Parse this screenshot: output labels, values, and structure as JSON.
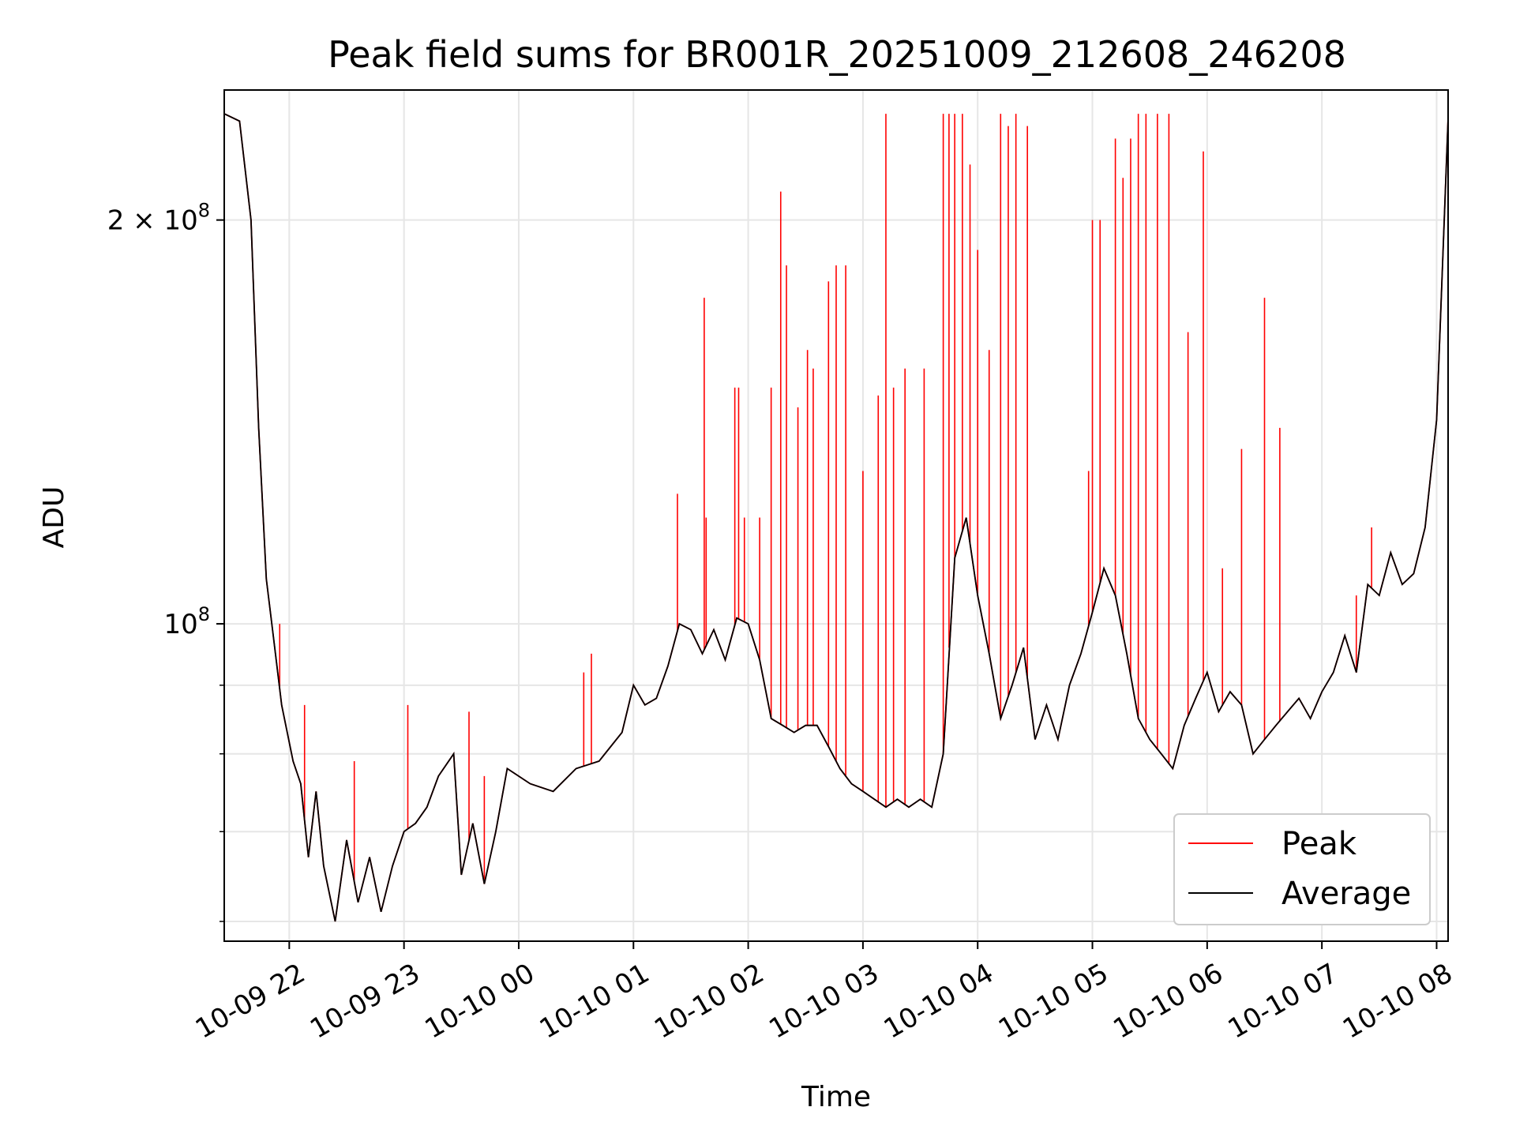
{
  "chart_data": {
    "type": "line",
    "title": "Peak field sums for BR001R_20251009_212608_246208",
    "xlabel": "Time",
    "ylabel": "ADU",
    "y_scale": "log",
    "ylim": [
      58000000,
      250000000
    ],
    "xlim": [
      "2025-10-09 21:26",
      "2025-10-10 08:06"
    ],
    "grid": true,
    "legend_position": "lower-right",
    "x_ticks": [
      "10-09 22",
      "10-09 23",
      "10-10 00",
      "10-10 01",
      "10-10 02",
      "10-10 03",
      "10-10 04",
      "10-10 05",
      "10-10 06",
      "10-10 07",
      "10-10 08"
    ],
    "y_tick_labels": [
      {
        "value": 100000000,
        "mantissa": "",
        "exponent": "8"
      },
      {
        "value": 200000000,
        "mantissa": "2 × ",
        "exponent": "8"
      }
    ],
    "y_minor_ticks": [
      60000000,
      70000000,
      80000000,
      90000000
    ],
    "colors": {
      "peak": "#ff0000",
      "average": "#000000"
    },
    "series": [
      {
        "name": "Average",
        "x": [
          "2025-10-09 21:26",
          "2025-10-09 21:34",
          "2025-10-09 21:40",
          "2025-10-09 21:44",
          "2025-10-09 21:48",
          "2025-10-09 21:52",
          "2025-10-09 21:56",
          "2025-10-09 22:02",
          "2025-10-09 22:06",
          "2025-10-09 22:10",
          "2025-10-09 22:14",
          "2025-10-09 22:18",
          "2025-10-09 22:24",
          "2025-10-09 22:30",
          "2025-10-09 22:36",
          "2025-10-09 22:42",
          "2025-10-09 22:48",
          "2025-10-09 22:54",
          "2025-10-09 23:00",
          "2025-10-09 23:06",
          "2025-10-09 23:12",
          "2025-10-09 23:18",
          "2025-10-09 23:26",
          "2025-10-09 23:30",
          "2025-10-09 23:36",
          "2025-10-09 23:42",
          "2025-10-09 23:48",
          "2025-10-09 23:54",
          "2025-10-10 00:06",
          "2025-10-10 00:18",
          "2025-10-10 00:30",
          "2025-10-10 00:42",
          "2025-10-10 00:54",
          "2025-10-10 01:00",
          "2025-10-10 01:06",
          "2025-10-10 01:12",
          "2025-10-10 01:18",
          "2025-10-10 01:24",
          "2025-10-10 01:30",
          "2025-10-10 01:36",
          "2025-10-10 01:42",
          "2025-10-10 01:48",
          "2025-10-10 01:54",
          "2025-10-10 02:00",
          "2025-10-10 02:06",
          "2025-10-10 02:12",
          "2025-10-10 02:18",
          "2025-10-10 02:24",
          "2025-10-10 02:30",
          "2025-10-10 02:36",
          "2025-10-10 02:42",
          "2025-10-10 02:48",
          "2025-10-10 02:54",
          "2025-10-10 03:00",
          "2025-10-10 03:06",
          "2025-10-10 03:12",
          "2025-10-10 03:18",
          "2025-10-10 03:24",
          "2025-10-10 03:30",
          "2025-10-10 03:36",
          "2025-10-10 03:42",
          "2025-10-10 03:48",
          "2025-10-10 03:54",
          "2025-10-10 04:00",
          "2025-10-10 04:06",
          "2025-10-10 04:12",
          "2025-10-10 04:18",
          "2025-10-10 04:24",
          "2025-10-10 04:30",
          "2025-10-10 04:36",
          "2025-10-10 04:42",
          "2025-10-10 04:48",
          "2025-10-10 04:54",
          "2025-10-10 05:00",
          "2025-10-10 05:06",
          "2025-10-10 05:12",
          "2025-10-10 05:18",
          "2025-10-10 05:24",
          "2025-10-10 05:30",
          "2025-10-10 05:36",
          "2025-10-10 05:42",
          "2025-10-10 05:48",
          "2025-10-10 05:54",
          "2025-10-10 06:00",
          "2025-10-10 06:06",
          "2025-10-10 06:12",
          "2025-10-10 06:18",
          "2025-10-10 06:24",
          "2025-10-10 06:30",
          "2025-10-10 06:36",
          "2025-10-10 06:42",
          "2025-10-10 06:48",
          "2025-10-10 06:54",
          "2025-10-10 07:00",
          "2025-10-10 07:06",
          "2025-10-10 07:12",
          "2025-10-10 07:18",
          "2025-10-10 07:24",
          "2025-10-10 07:30",
          "2025-10-10 07:36",
          "2025-10-10 07:42",
          "2025-10-10 07:48",
          "2025-10-10 07:54",
          "2025-10-10 08:00",
          "2025-10-10 08:06"
        ],
        "y": [
          240000000,
          237000000,
          200000000,
          140000000,
          108000000,
          97000000,
          87000000,
          79000000,
          76000000,
          67000000,
          75000000,
          66000000,
          60000000,
          69000000,
          62000000,
          67000000,
          61000000,
          66000000,
          70000000,
          71000000,
          73000000,
          77000000,
          80000000,
          65000000,
          71000000,
          64000000,
          70000000,
          78000000,
          76000000,
          75000000,
          78000000,
          79000000,
          83000000,
          90000000,
          87000000,
          88000000,
          93000000,
          100000000,
          99000000,
          95000000,
          99000000,
          94000000,
          101000000,
          100000000,
          94000000,
          85000000,
          84000000,
          83000000,
          84000000,
          84000000,
          81000000,
          78000000,
          76000000,
          75000000,
          74000000,
          73000000,
          74000000,
          73000000,
          74000000,
          73000000,
          80000000,
          112000000,
          120000000,
          105000000,
          95000000,
          85000000,
          90000000,
          96000000,
          82000000,
          87000000,
          82000000,
          90000000,
          95000000,
          102000000,
          110000000,
          105000000,
          95000000,
          85000000,
          82000000,
          80000000,
          78000000,
          84000000,
          88000000,
          92000000,
          86000000,
          89000000,
          87000000,
          80000000,
          82000000,
          84000000,
          86000000,
          88000000,
          85000000,
          89000000,
          92000000,
          98000000,
          92000000,
          107000000,
          105000000,
          113000000,
          107000000,
          109000000,
          118000000,
          142000000,
          238000000
        ],
        "y_note": ""
      },
      {
        "name": "Peak",
        "x": [
          "2025-10-09 21:26",
          "2025-10-09 21:34",
          "2025-10-09 21:40",
          "2025-10-09 21:44",
          "2025-10-09 21:48",
          "2025-10-09 21:52",
          "2025-10-09 21:56",
          "2025-10-09 22:02",
          "2025-10-09 22:06",
          "2025-10-09 22:10",
          "2025-10-09 22:14",
          "2025-10-09 22:18",
          "2025-10-09 22:24",
          "2025-10-09 22:30",
          "2025-10-09 22:36",
          "2025-10-09 22:42",
          "2025-10-09 22:48",
          "2025-10-09 22:54",
          "2025-10-09 23:00",
          "2025-10-09 23:06",
          "2025-10-09 23:12",
          "2025-10-09 23:18",
          "2025-10-09 23:26",
          "2025-10-09 23:30",
          "2025-10-09 23:36",
          "2025-10-09 23:42",
          "2025-10-09 23:48",
          "2025-10-09 23:54",
          "2025-10-10 00:06",
          "2025-10-10 00:18",
          "2025-10-10 00:30",
          "2025-10-10 00:42",
          "2025-10-10 00:54",
          "2025-10-10 01:00",
          "2025-10-10 01:06",
          "2025-10-10 01:12",
          "2025-10-10 01:18",
          "2025-10-10 01:24",
          "2025-10-10 01:30",
          "2025-10-10 01:36",
          "2025-10-10 01:42",
          "2025-10-10 01:48",
          "2025-10-10 01:54",
          "2025-10-10 02:00",
          "2025-10-10 02:06",
          "2025-10-10 02:12",
          "2025-10-10 02:18",
          "2025-10-10 02:24",
          "2025-10-10 02:30",
          "2025-10-10 02:36",
          "2025-10-10 02:42",
          "2025-10-10 02:48",
          "2025-10-10 02:54",
          "2025-10-10 03:00",
          "2025-10-10 03:06",
          "2025-10-10 03:12",
          "2025-10-10 03:18",
          "2025-10-10 03:24",
          "2025-10-10 03:30",
          "2025-10-10 03:36",
          "2025-10-10 03:42",
          "2025-10-10 03:48",
          "2025-10-10 03:54",
          "2025-10-10 04:00",
          "2025-10-10 04:06",
          "2025-10-10 04:12",
          "2025-10-10 04:18",
          "2025-10-10 04:24",
          "2025-10-10 04:30",
          "2025-10-10 04:36",
          "2025-10-10 04:42",
          "2025-10-10 04:48",
          "2025-10-10 04:54",
          "2025-10-10 05:00",
          "2025-10-10 05:06",
          "2025-10-10 05:12",
          "2025-10-10 05:18",
          "2025-10-10 05:24",
          "2025-10-10 05:30",
          "2025-10-10 05:36",
          "2025-10-10 05:42",
          "2025-10-10 05:48",
          "2025-10-10 05:54",
          "2025-10-10 06:00",
          "2025-10-10 06:06",
          "2025-10-10 06:12",
          "2025-10-10 06:18",
          "2025-10-10 06:24",
          "2025-10-10 06:30",
          "2025-10-10 06:36",
          "2025-10-10 06:42",
          "2025-10-10 06:48",
          "2025-10-10 06:54",
          "2025-10-10 07:00",
          "2025-10-10 07:06",
          "2025-10-10 07:12",
          "2025-10-10 07:18",
          "2025-10-10 07:24",
          "2025-10-10 07:30",
          "2025-10-10 07:36",
          "2025-10-10 07:42",
          "2025-10-10 07:48",
          "2025-10-10 07:54",
          "2025-10-10 08:00",
          "2025-10-10 08:06"
        ],
        "y": [
          240000000,
          237000000,
          200000000,
          140000000,
          108000000,
          97000000,
          87000000,
          79000000,
          76000000,
          67000000,
          75000000,
          66000000,
          60000000,
          69000000,
          62000000,
          67000000,
          61000000,
          66000000,
          70000000,
          71000000,
          73000000,
          77000000,
          80000000,
          65000000,
          71000000,
          64000000,
          70000000,
          78000000,
          76000000,
          75000000,
          78000000,
          79000000,
          83000000,
          90000000,
          87000000,
          88000000,
          93000000,
          100000000,
          99000000,
          95000000,
          99000000,
          94000000,
          101000000,
          100000000,
          94000000,
          85000000,
          84000000,
          83000000,
          84000000,
          84000000,
          81000000,
          78000000,
          76000000,
          75000000,
          74000000,
          73000000,
          74000000,
          73000000,
          74000000,
          73000000,
          80000000,
          112000000,
          120000000,
          105000000,
          95000000,
          85000000,
          90000000,
          96000000,
          82000000,
          87000000,
          82000000,
          90000000,
          95000000,
          102000000,
          110000000,
          105000000,
          95000000,
          85000000,
          82000000,
          80000000,
          78000000,
          84000000,
          88000000,
          92000000,
          86000000,
          89000000,
          87000000,
          80000000,
          82000000,
          84000000,
          86000000,
          88000000,
          85000000,
          89000000,
          92000000,
          98000000,
          92000000,
          107000000,
          105000000,
          113000000,
          107000000,
          109000000,
          118000000,
          142000000,
          238000000
        ],
        "spikes": [
          [
            "2025-10-09 21:55",
            100000000
          ],
          [
            "2025-10-09 22:08",
            87000000
          ],
          [
            "2025-10-09 22:34",
            79000000
          ],
          [
            "2025-10-09 23:02",
            87000000
          ],
          [
            "2025-10-09 23:34",
            86000000
          ],
          [
            "2025-10-09 23:42",
            77000000
          ],
          [
            "2025-10-10 00:34",
            92000000
          ],
          [
            "2025-10-10 00:38",
            95000000
          ],
          [
            "2025-10-10 01:23",
            125000000
          ],
          [
            "2025-10-10 01:37",
            175000000
          ],
          [
            "2025-10-10 01:38",
            120000000
          ],
          [
            "2025-10-10 01:53",
            150000000
          ],
          [
            "2025-10-10 01:55",
            150000000
          ],
          [
            "2025-10-10 01:58",
            120000000
          ],
          [
            "2025-10-10 02:06",
            120000000
          ],
          [
            "2025-10-10 02:12",
            150000000
          ],
          [
            "2025-10-10 02:17",
            210000000
          ],
          [
            "2025-10-10 02:20",
            185000000
          ],
          [
            "2025-10-10 02:26",
            145000000
          ],
          [
            "2025-10-10 02:31",
            160000000
          ],
          [
            "2025-10-10 02:34",
            155000000
          ],
          [
            "2025-10-10 02:42",
            180000000
          ],
          [
            "2025-10-10 02:46",
            185000000
          ],
          [
            "2025-10-10 02:51",
            185000000
          ],
          [
            "2025-10-10 03:00",
            130000000
          ],
          [
            "2025-10-10 03:08",
            148000000
          ],
          [
            "2025-10-10 03:12",
            240000000
          ],
          [
            "2025-10-10 03:16",
            150000000
          ],
          [
            "2025-10-10 03:22",
            155000000
          ],
          [
            "2025-10-10 03:32",
            155000000
          ],
          [
            "2025-10-10 03:42",
            240000000
          ],
          [
            "2025-10-10 03:45",
            240000000
          ],
          [
            "2025-10-10 03:48",
            240000000
          ],
          [
            "2025-10-10 03:52",
            240000000
          ],
          [
            "2025-10-10 03:56",
            220000000
          ],
          [
            "2025-10-10 04:00",
            190000000
          ],
          [
            "2025-10-10 04:06",
            160000000
          ],
          [
            "2025-10-10 04:12",
            240000000
          ],
          [
            "2025-10-10 04:16",
            235000000
          ],
          [
            "2025-10-10 04:20",
            240000000
          ],
          [
            "2025-10-10 04:26",
            235000000
          ],
          [
            "2025-10-10 04:58",
            130000000
          ],
          [
            "2025-10-10 05:00",
            200000000
          ],
          [
            "2025-10-10 05:04",
            200000000
          ],
          [
            "2025-10-10 05:12",
            230000000
          ],
          [
            "2025-10-10 05:16",
            215000000
          ],
          [
            "2025-10-10 05:20",
            230000000
          ],
          [
            "2025-10-10 05:24",
            240000000
          ],
          [
            "2025-10-10 05:28",
            240000000
          ],
          [
            "2025-10-10 05:34",
            240000000
          ],
          [
            "2025-10-10 05:40",
            240000000
          ],
          [
            "2025-10-10 05:50",
            165000000
          ],
          [
            "2025-10-10 05:58",
            225000000
          ],
          [
            "2025-10-10 06:08",
            110000000
          ],
          [
            "2025-10-10 06:18",
            135000000
          ],
          [
            "2025-10-10 06:30",
            175000000
          ],
          [
            "2025-10-10 06:38",
            140000000
          ],
          [
            "2025-10-10 07:18",
            105000000
          ],
          [
            "2025-10-10 07:26",
            118000000
          ]
        ]
      }
    ]
  }
}
